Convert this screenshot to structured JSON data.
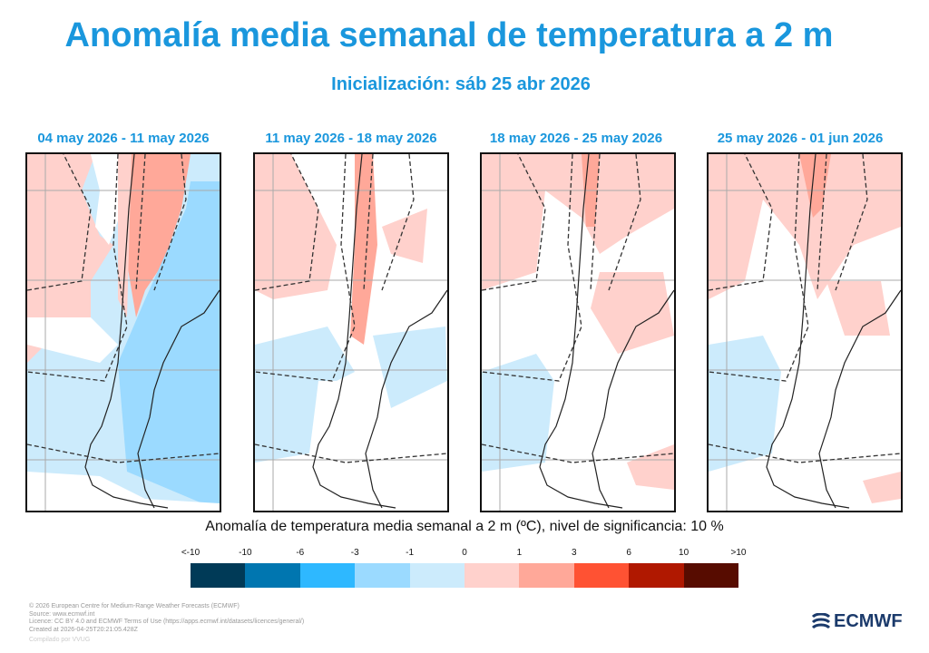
{
  "title": "Anomalía media semanal de temperatura a 2 m",
  "subtitle": "Inicialización: sáb 25 abr 2026",
  "chart_data": {
    "type": "heatmap",
    "panels": [
      {
        "title": "04 may 2026 - 11 may 2026",
        "summary": "warm north-west ocean and northern Argentina, cool (-3 to -1) over Patagonia and south Pacific"
      },
      {
        "title": "11 may 2026 - 18 may 2026",
        "summary": "warm Pacific north, weak warm Andes, mostly near-normal south"
      },
      {
        "title": "18 may 2026 - 25 may 2026",
        "summary": "weak warm north and central Argentina, weak cool south-west Pacific"
      },
      {
        "title": "25 may 2026 - 01 jun 2026",
        "summary": "weak warm north, warm band along Andes, weak cool south-west Pacific"
      }
    ],
    "colorbar": {
      "label": "Anomalía de temperatura media semanal a 2 m (ºC), nivel de significancia: 10 %",
      "ticks": [
        "<-10",
        "-10",
        "-6",
        "-3",
        "-1",
        "0",
        "1",
        "3",
        "6",
        "10",
        ">10"
      ],
      "colors": [
        "#003a57",
        "#0076b0",
        "#2eb8ff",
        "#9bdaff",
        "#ccebfc",
        "#ffd1cc",
        "#ffa899",
        "#ff5233",
        "#b01800",
        "#570c00"
      ]
    }
  },
  "credits": [
    "© 2026 European Centre for Medium-Range Weather Forecasts (ECMWF)",
    "Source: www.ecmwf.int",
    "Licence: CC BY 4.0 and ECMWF Terms of Use (https://apps.ecmwf.int/datasets/licences/general/)",
    "Created at 2026-04-25T20:21:05.428Z"
  ],
  "compiled": "Compilado por VVUG",
  "logo": "ECMWF"
}
